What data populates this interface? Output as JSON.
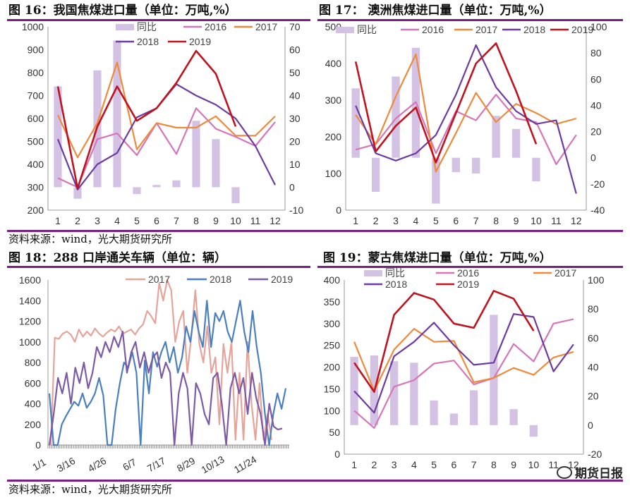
{
  "panels": {
    "p16": {
      "title": "图 16：我国焦煤进口量（单位：万吨,%）"
    },
    "p17": {
      "title": "图 17：  澳洲焦煤进口量（单位：万吨,%）"
    },
    "p18": {
      "title": "图 18：288 口岸通关车辆（单位：辆）"
    },
    "p19": {
      "title": "图 19：蒙古焦煤进口量（单位：万吨,%）"
    }
  },
  "sources": {
    "top": "资料来源：wind，光大期货研究所",
    "bottom": "资料来源：wind，光大期货研究所"
  },
  "watermark": "期货日报",
  "colors": {
    "rule": "#7a1f86",
    "bar": "#d4c2e4",
    "s2016": "#d775b9",
    "s2017": "#ee8a3a",
    "s2018": "#6b3aa3",
    "s2019": "#c1121f",
    "truck2017": "#e6a39a",
    "truck2018": "#4a7fc0",
    "truck2019": "#7c5aa5"
  },
  "chart_data": [
    {
      "id": "c16",
      "type": "bar+line",
      "title": "我国焦煤进口量（单位：万吨,%）",
      "categories": [
        "1",
        "2",
        "3",
        "4",
        "5",
        "6",
        "7",
        "8",
        "9",
        "10",
        "11",
        "12"
      ],
      "left_axis": {
        "min": 200,
        "max": 1000,
        "step": 100
      },
      "right_axis": {
        "min": -10,
        "max": 70,
        "step": 10
      },
      "bar_series": {
        "name": "同比",
        "axis": "right",
        "values": [
          44,
          -5,
          51,
          64,
          -3,
          1,
          3,
          29,
          21,
          -7,
          null,
          null
        ]
      },
      "series": [
        {
          "name": "2016",
          "axis": "left",
          "values": [
            340,
            300,
            510,
            535,
            440,
            580,
            445,
            645,
            555,
            520,
            480,
            585
          ]
        },
        {
          "name": "2017",
          "axis": "left",
          "values": [
            615,
            430,
            580,
            845,
            465,
            580,
            560,
            560,
            610,
            525,
            525,
            610
          ]
        },
        {
          "name": "2018",
          "axis": "left",
          "values": [
            510,
            290,
            400,
            450,
            605,
            645,
            750,
            700,
            660,
            600,
            480,
            310
          ]
        },
        {
          "name": "2019",
          "axis": "left",
          "values": [
            740,
            295,
            565,
            740,
            590,
            645,
            755,
            895,
            795,
            565,
            null,
            null
          ]
        }
      ],
      "legend": [
        "同比",
        "2016",
        "2017",
        "2018",
        "2019"
      ]
    },
    {
      "id": "c17",
      "type": "bar+line",
      "title": "澳洲焦煤进口量（单位：万吨,%）",
      "categories": [
        "1",
        "2",
        "3",
        "4",
        "5",
        "6",
        "7",
        "8",
        "9",
        "10",
        "11",
        "12"
      ],
      "left_axis": {
        "min": 0,
        "max": 500,
        "step": 100
      },
      "right_axis": {
        "min": -40,
        "max": 100,
        "step": 20
      },
      "bar_series": {
        "name": "同比",
        "axis": "right",
        "values": [
          53,
          -26,
          62,
          84,
          -35,
          -11,
          -12,
          32,
          22,
          -18,
          null,
          null
        ]
      },
      "series": [
        {
          "name": "2016",
          "axis": "left",
          "values": [
            165,
            180,
            250,
            295,
            155,
            270,
            245,
            315,
            250,
            240,
            125,
            205
          ]
        },
        {
          "name": "2017",
          "axis": "left",
          "values": [
            260,
            180,
            310,
            425,
            105,
            210,
            320,
            240,
            290,
            265,
            235,
            250
          ]
        },
        {
          "name": "2018",
          "axis": "left",
          "values": [
            285,
            155,
            135,
            155,
            205,
            315,
            450,
            335,
            270,
            235,
            245,
            45
          ]
        },
        {
          "name": "2019",
          "axis": "left",
          "values": [
            405,
            160,
            230,
            280,
            130,
            265,
            400,
            455,
            325,
            180,
            null,
            null
          ]
        }
      ],
      "legend": [
        "同比",
        "2016",
        "2017",
        "2018",
        "2019"
      ]
    },
    {
      "id": "c18",
      "type": "line",
      "title": "288口岸通关车辆（单位：辆）",
      "x_tick_labels": [
        "1/1",
        "3/16",
        "4/26",
        "6/7",
        "7/17",
        "8/29",
        "10/13",
        "11/24"
      ],
      "y_axis": {
        "min": 0,
        "max": 1600,
        "step": 200
      },
      "series": [
        {
          "name": "2017",
          "values": [
            0,
            1040,
            1030,
            1080,
            1100,
            1070,
            1000,
            1120,
            1050,
            1100,
            1060,
            1130,
            1080,
            1050,
            1090,
            1120,
            1100,
            1150,
            1080,
            1100,
            1120,
            1070,
            1130,
            1170,
            1300,
            1250,
            1180,
            1570,
            1400,
            1600,
            1500,
            1000,
            1200,
            1300,
            700,
            1050,
            1500,
            980,
            800,
            1150,
            700,
            850,
            200,
            980,
            700,
            1000,
            50,
            700,
            50,
            1000,
            400,
            50,
            600,
            50,
            300,
            50
          ]
        },
        {
          "name": "2018",
          "values": [
            500,
            0,
            0,
            200,
            280,
            350,
            420,
            380,
            500,
            360,
            420,
            500,
            650,
            480,
            0,
            0,
            350,
            600,
            800,
            750,
            900,
            700,
            0,
            820,
            500,
            900,
            760,
            900,
            1000,
            800,
            950,
            700,
            850,
            1150,
            1000,
            1300,
            1100,
            950,
            1400,
            950,
            1280,
            1200,
            1300,
            1100,
            1000,
            1200,
            1400,
            1100,
            900,
            1300,
            950,
            700,
            300,
            0,
            300,
            500,
            350,
            550
          ]
        },
        {
          "name": "2019",
          "values": [
            0,
            300,
            650,
            500,
            700,
            400,
            750,
            600,
            800,
            550,
            700,
            950,
            850,
            1000,
            900,
            1050,
            950,
            1100,
            700,
            900,
            1000,
            750,
            900,
            700,
            850,
            900,
            650,
            800,
            700,
            0,
            500,
            700,
            550,
            0,
            600,
            500,
            300,
            200,
            650,
            700,
            400,
            0,
            550,
            700,
            500,
            650,
            300,
            700,
            450,
            300,
            0,
            400,
            180,
            150,
            160
          ]
        }
      ],
      "legend": [
        "2017",
        "2018",
        "2019"
      ]
    },
    {
      "id": "c19",
      "type": "bar+line",
      "title": "蒙古焦煤进口量（单位：万吨,%）",
      "categories": [
        "1",
        "2",
        "3",
        "4",
        "5",
        "6",
        "7",
        "8",
        "9",
        "10",
        "11",
        "12"
      ],
      "left_axis": {
        "min": 0,
        "max": 400,
        "step": 50
      },
      "right_axis": {
        "min": -20,
        "max": 100,
        "step": 20
      },
      "bar_series": {
        "name": "同比",
        "axis": "right",
        "values": [
          47,
          48,
          44,
          43,
          17,
          8,
          24,
          76,
          11,
          -8,
          null,
          null
        ]
      },
      "series": [
        {
          "name": "2016",
          "axis": "left",
          "values": [
            100,
            60,
            155,
            170,
            208,
            215,
            160,
            175,
            253,
            213,
            300,
            310
          ]
        },
        {
          "name": "2017",
          "axis": "left",
          "values": [
            258,
            145,
            240,
            288,
            258,
            260,
            165,
            175,
            198,
            182,
            222,
            235
          ]
        },
        {
          "name": "2018",
          "axis": "left",
          "values": [
            145,
            95,
            225,
            258,
            302,
            250,
            205,
            210,
            322,
            315,
            190,
            252
          ]
        },
        {
          "name": "2019",
          "axis": "left",
          "values": [
            210,
            143,
            320,
            370,
            355,
            300,
            290,
            375,
            357,
            283,
            null,
            null
          ]
        }
      ],
      "legend": [
        "同比",
        "2016",
        "2017",
        "2018",
        "2019"
      ]
    }
  ]
}
